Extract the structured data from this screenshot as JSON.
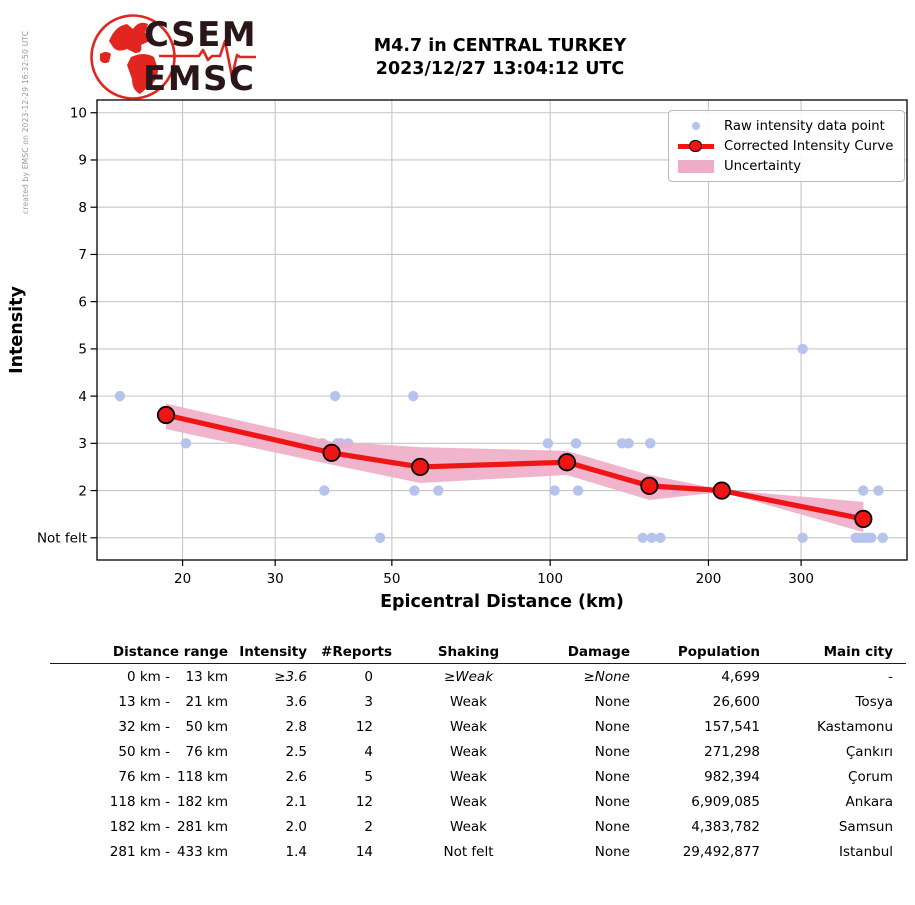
{
  "header": {
    "logo_top": "CSEM",
    "logo_bottom": "EMSC",
    "title_line1": "M4.7 in CENTRAL TURKEY",
    "title_line2": "2023/12/27 13:04:12 UTC",
    "created_by": "created by EMSC on 2023-12-29 16:32:50 UTC"
  },
  "colors": {
    "raw_point": "#b6c3ec",
    "curve": "#f01515",
    "uncertainty": "#eeadc7",
    "grid": "#c6c6c6",
    "spine": "#000000",
    "logo_red": "#e2261f",
    "logo_dark": "#2a1518",
    "muted_text": "#999999"
  },
  "chart_data": {
    "type": "scatter",
    "title": "M4.7 in CENTRAL TURKEY 2023/12/27 13:04:12 UTC",
    "xlabel": "Epicentral Distance (km)",
    "ylabel": "Intensity",
    "x_scale": "log",
    "xlim": [
      13.75,
      477
    ],
    "ylim": [
      0.53,
      10.27
    ],
    "x_ticks": [
      20,
      30,
      50,
      100,
      200,
      300
    ],
    "y_ticks": [
      1,
      2,
      3,
      4,
      5,
      6,
      7,
      8,
      9,
      10
    ],
    "y_tick_labels": [
      "Not felt",
      "2",
      "3",
      "4",
      "5",
      "6",
      "7",
      "8",
      "9",
      "10"
    ],
    "grid": true,
    "legend": {
      "position": "upper right",
      "entries": [
        {
          "label": "Raw intensity data point",
          "type": "dot"
        },
        {
          "label": "Corrected Intensity Curve",
          "type": "line-marker"
        },
        {
          "label": "Uncertainty",
          "type": "band"
        }
      ]
    },
    "raw_points": [
      [
        15.2,
        4
      ],
      [
        20.3,
        3
      ],
      [
        34.7,
        3
      ],
      [
        36.9,
        3
      ],
      [
        37.2,
        2
      ],
      [
        39.0,
        4
      ],
      [
        39.4,
        3
      ],
      [
        40.0,
        3
      ],
      [
        41.3,
        3
      ],
      [
        47.5,
        1
      ],
      [
        54.9,
        4
      ],
      [
        55.2,
        2
      ],
      [
        61.3,
        2
      ],
      [
        99,
        3
      ],
      [
        102,
        2
      ],
      [
        112,
        3
      ],
      [
        113,
        2
      ],
      [
        137,
        3
      ],
      [
        141,
        3
      ],
      [
        150,
        1
      ],
      [
        155,
        3
      ],
      [
        156,
        1
      ],
      [
        162,
        1
      ],
      [
        173,
        2
      ],
      [
        212,
        2
      ],
      [
        302,
        5
      ],
      [
        302,
        1
      ],
      [
        381,
        1
      ],
      [
        388,
        1
      ],
      [
        394,
        2
      ],
      [
        394,
        1
      ],
      [
        401,
        1
      ],
      [
        408,
        1
      ],
      [
        421,
        2
      ],
      [
        429,
        1
      ]
    ],
    "corrected_curve": {
      "distance_km": [
        18.6,
        38.4,
        56.6,
        107.6,
        154.4,
        212,
        394
      ],
      "intensity": [
        3.6,
        2.8,
        2.5,
        2.6,
        2.1,
        2.0,
        1.4
      ],
      "uncertainty_upper": [
        3.84,
        3.04,
        2.92,
        2.84,
        2.33,
        2.02,
        1.76
      ],
      "uncertainty_lower": [
        3.3,
        2.55,
        2.16,
        2.33,
        1.8,
        1.97,
        1.12
      ]
    }
  },
  "table": {
    "columns": [
      {
        "label": "Distance range",
        "align": "right"
      },
      {
        "label": "Intensity",
        "align": "right"
      },
      {
        "label": "#Reports",
        "align": "right"
      },
      {
        "label": "Shaking",
        "align": "center"
      },
      {
        "label": "Damage",
        "align": "right"
      },
      {
        "label": "Population",
        "align": "right"
      },
      {
        "label": "Main city",
        "align": "right"
      }
    ],
    "rows": [
      {
        "from": "0 km -",
        "to": "13 km",
        "intensity": "≥3.6",
        "reports": "0",
        "shaking": "≥Weak",
        "damage": "≥None",
        "population": "4,699",
        "city": "-",
        "estimated": true
      },
      {
        "from": "13 km -",
        "to": "21 km",
        "intensity": "3.6",
        "reports": "3",
        "shaking": "Weak",
        "damage": "None",
        "population": "26,600",
        "city": "Tosya",
        "estimated": false
      },
      {
        "from": "32 km -",
        "to": "50 km",
        "intensity": "2.8",
        "reports": "12",
        "shaking": "Weak",
        "damage": "None",
        "population": "157,541",
        "city": "Kastamonu",
        "estimated": false
      },
      {
        "from": "50 km -",
        "to": "76 km",
        "intensity": "2.5",
        "reports": "4",
        "shaking": "Weak",
        "damage": "None",
        "population": "271,298",
        "city": "Çankırı",
        "estimated": false
      },
      {
        "from": "76 km -",
        "to": "118 km",
        "intensity": "2.6",
        "reports": "5",
        "shaking": "Weak",
        "damage": "None",
        "population": "982,394",
        "city": "Çorum",
        "estimated": false
      },
      {
        "from": "118 km -",
        "to": "182 km",
        "intensity": "2.1",
        "reports": "12",
        "shaking": "Weak",
        "damage": "None",
        "population": "6,909,085",
        "city": "Ankara",
        "estimated": false
      },
      {
        "from": "182 km -",
        "to": "281 km",
        "intensity": "2.0",
        "reports": "2",
        "shaking": "Weak",
        "damage": "None",
        "population": "4,383,782",
        "city": "Samsun",
        "estimated": false
      },
      {
        "from": "281 km -",
        "to": "433 km",
        "intensity": "1.4",
        "reports": "14",
        "shaking": "Not felt",
        "damage": "None",
        "population": "29,492,877",
        "city": "Istanbul",
        "estimated": false
      }
    ]
  }
}
